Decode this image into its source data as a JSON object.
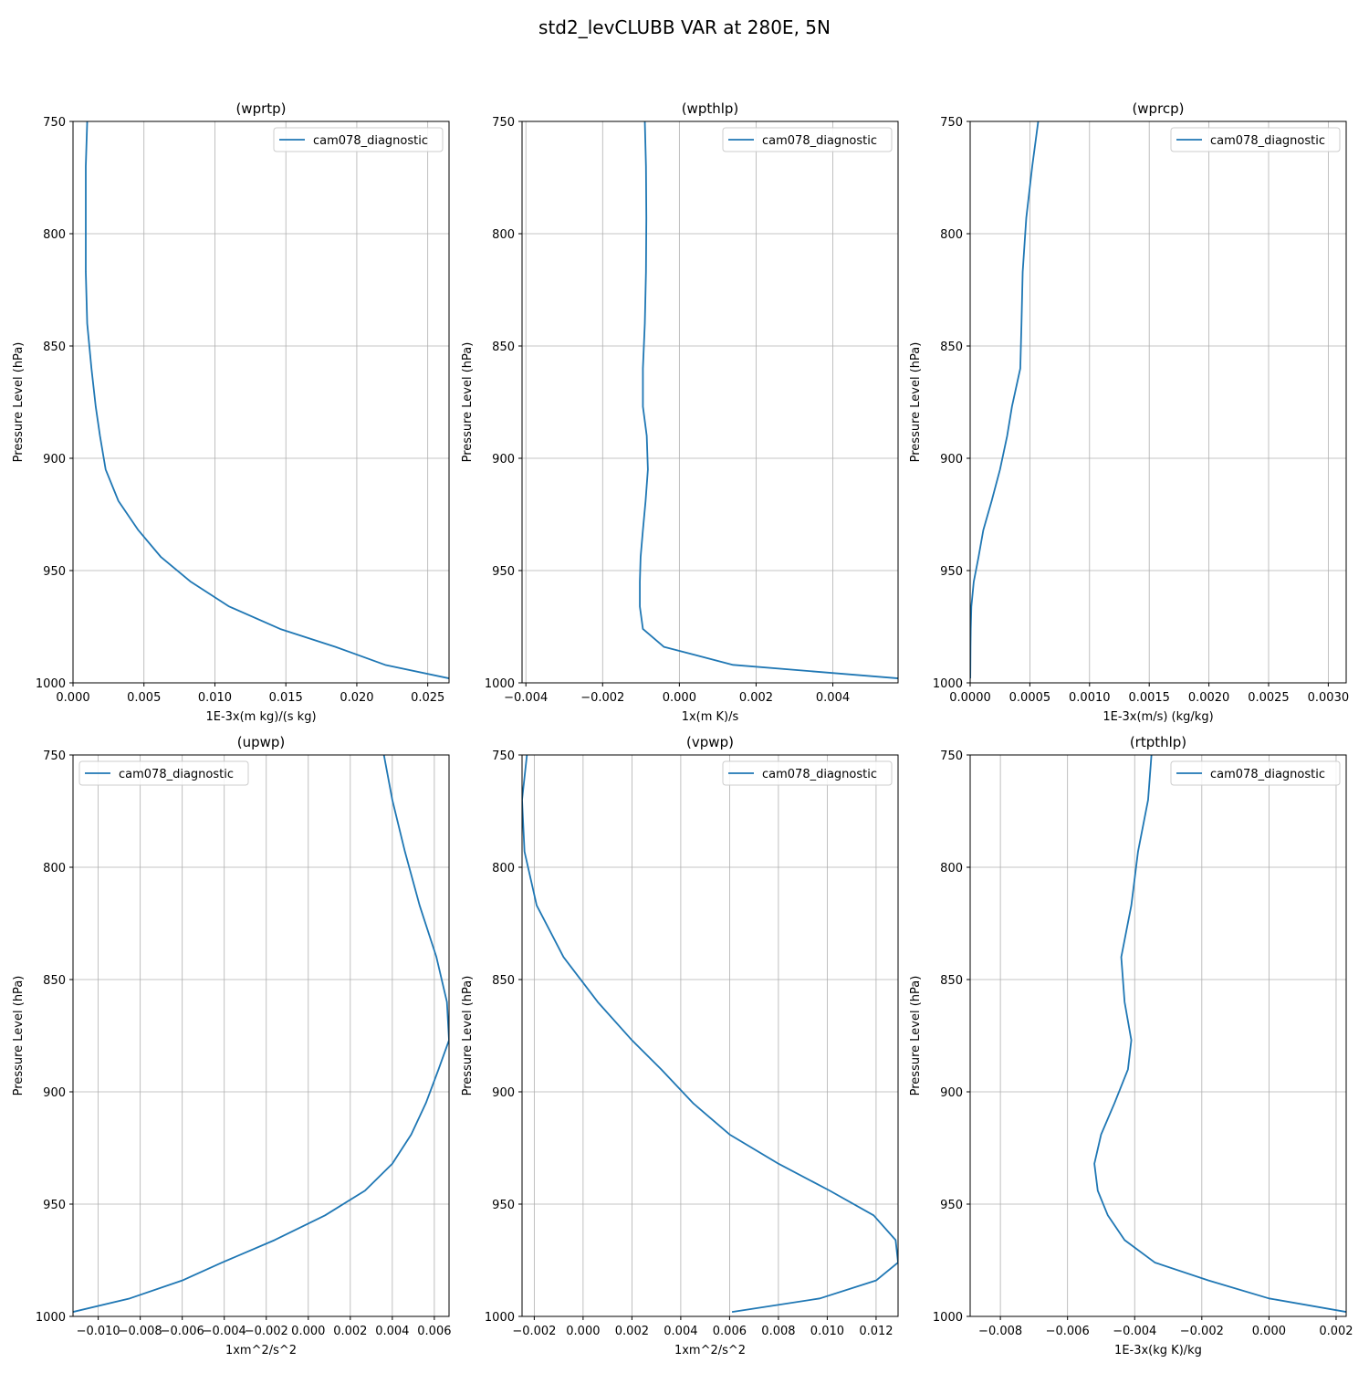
{
  "figure": {
    "title": "std2_levCLUBB VAR at 280E, 5N"
  },
  "colors": {
    "series": "#1f77b4",
    "grid": "#b0b0b0",
    "axes": "#000000",
    "legend_border": "#cccccc",
    "background": "#ffffff"
  },
  "chart_data": [
    {
      "type": "line",
      "title": "(wprtp)",
      "xlabel": "1E-3x(m kg)/(s kg)",
      "ylabel": "Pressure Level (hPa)",
      "xlim": [
        0,
        0.0265
      ],
      "ylim": [
        1000,
        750
      ],
      "y_inverted": true,
      "xticks": [
        0.0,
        0.005,
        0.01,
        0.015,
        0.02,
        0.025
      ],
      "xtick_labels": [
        "0.000",
        "0.005",
        "0.010",
        "0.015",
        "0.020",
        "0.025"
      ],
      "yticks": [
        750,
        800,
        850,
        900,
        950,
        1000
      ],
      "ytick_labels": [
        "750",
        "800",
        "850",
        "900",
        "950",
        "1000"
      ],
      "grid": true,
      "legend_loc": "upper right",
      "series": [
        {
          "name": "cam078_diagnostic",
          "x": [
            0.001,
            0.0009,
            0.0009,
            0.0009,
            0.001,
            0.0013,
            0.0016,
            0.0019,
            0.0023,
            0.0032,
            0.0046,
            0.0062,
            0.0083,
            0.011,
            0.0146,
            0.0185,
            0.022,
            0.0265
          ],
          "y": [
            750,
            770,
            793,
            817,
            840,
            860,
            877,
            890,
            905,
            919,
            932,
            944,
            955,
            966,
            976,
            984,
            992,
            998
          ]
        }
      ]
    },
    {
      "type": "line",
      "title": "(wpthlp)",
      "xlabel": "1x(m K)/s",
      "ylabel": "Pressure Level (hPa)",
      "xlim": [
        -0.0041,
        0.0057
      ],
      "ylim": [
        1000,
        750
      ],
      "y_inverted": true,
      "xticks": [
        -0.004,
        -0.002,
        0.0,
        0.002,
        0.004
      ],
      "xtick_labels": [
        "−0.004",
        "−0.002",
        "0.000",
        "0.002",
        "0.004"
      ],
      "yticks": [
        750,
        800,
        850,
        900,
        950,
        1000
      ],
      "ytick_labels": [
        "750",
        "800",
        "850",
        "900",
        "950",
        "1000"
      ],
      "grid": true,
      "legend_loc": "upper right",
      "series": [
        {
          "name": "cam078_diagnostic",
          "x": [
            -0.0009,
            -0.00087,
            -0.00086,
            -0.00087,
            -0.0009,
            -0.00095,
            -0.00095,
            -0.00085,
            -0.00082,
            -0.00088,
            -0.00095,
            -0.00101,
            -0.00103,
            -0.00103,
            -0.00095,
            -0.0004,
            0.0014,
            0.0057
          ],
          "y": [
            750,
            770,
            793,
            817,
            840,
            860,
            877,
            890,
            905,
            919,
            932,
            944,
            955,
            966,
            976,
            984,
            992,
            998
          ]
        }
      ]
    },
    {
      "type": "line",
      "title": "(wprcp)",
      "xlabel": "1E-3x(m/s) (kg/kg)",
      "ylabel": "Pressure Level (hPa)",
      "xlim": [
        0,
        0.00315
      ],
      "ylim": [
        1000,
        750
      ],
      "y_inverted": true,
      "xticks": [
        0.0,
        0.0005,
        0.001,
        0.0015,
        0.002,
        0.0025,
        0.003
      ],
      "xtick_labels": [
        "0.0000",
        "0.0005",
        "0.0010",
        "0.0015",
        "0.0020",
        "0.0025",
        "0.0030"
      ],
      "yticks": [
        750,
        800,
        850,
        900,
        950,
        1000
      ],
      "ytick_labels": [
        "750",
        "800",
        "850",
        "900",
        "950",
        "1000"
      ],
      "grid": true,
      "legend_loc": "upper right",
      "series": [
        {
          "name": "cam078_diagnostic",
          "x": [
            0.00057,
            0.00052,
            0.00047,
            0.00044,
            0.00043,
            0.00042,
            0.00035,
            0.00031,
            0.00025,
            0.00018,
            0.00011,
            7e-05,
            3e-05,
            1e-05,
            5e-06,
            3e-06,
            2e-06,
            1e-06
          ],
          "y": [
            750,
            770,
            793,
            817,
            840,
            860,
            877,
            890,
            905,
            919,
            932,
            944,
            955,
            966,
            976,
            984,
            992,
            998
          ]
        }
      ]
    },
    {
      "type": "line",
      "title": "(upwp)",
      "xlabel": "1xm^2/s^2",
      "ylabel": "Pressure Level (hPa)",
      "xlim": [
        -0.0112,
        0.0067
      ],
      "ylim": [
        1000,
        750
      ],
      "y_inverted": true,
      "xticks": [
        -0.01,
        -0.008,
        -0.006,
        -0.004,
        -0.002,
        0.0,
        0.002,
        0.004,
        0.006
      ],
      "xtick_labels": [
        "−0.010",
        "−0.008",
        "−0.006",
        "−0.004",
        "−0.002",
        "0.000",
        "0.002",
        "0.004",
        "0.006"
      ],
      "yticks": [
        750,
        800,
        850,
        900,
        950,
        1000
      ],
      "ytick_labels": [
        "750",
        "800",
        "850",
        "900",
        "950",
        "1000"
      ],
      "grid": true,
      "legend_loc": "upper left",
      "series": [
        {
          "name": "cam078_diagnostic",
          "x": [
            0.0036,
            0.004,
            0.0046,
            0.0053,
            0.0061,
            0.0066,
            0.0067,
            0.0062,
            0.0056,
            0.0049,
            0.004,
            0.0027,
            0.0008,
            -0.0016,
            -0.0041,
            -0.006,
            -0.0085,
            -0.0112
          ],
          "y": [
            750,
            770,
            793,
            817,
            840,
            860,
            877,
            890,
            905,
            919,
            932,
            944,
            955,
            966,
            976,
            984,
            992,
            998
          ]
        }
      ]
    },
    {
      "type": "line",
      "title": "(vpwp)",
      "xlabel": "1xm^2/s^2",
      "ylabel": "Pressure Level (hPa)",
      "xlim": [
        -0.0025,
        0.0129
      ],
      "ylim": [
        1000,
        750
      ],
      "y_inverted": true,
      "xticks": [
        -0.002,
        0.0,
        0.002,
        0.004,
        0.006,
        0.008,
        0.01,
        0.012
      ],
      "xtick_labels": [
        "−0.002",
        "0.000",
        "0.002",
        "0.004",
        "0.006",
        "0.008",
        "0.010",
        "0.012"
      ],
      "yticks": [
        750,
        800,
        850,
        900,
        950,
        1000
      ],
      "ytick_labels": [
        "750",
        "800",
        "850",
        "900",
        "950",
        "1000"
      ],
      "grid": true,
      "legend_loc": "upper right",
      "series": [
        {
          "name": "cam078_diagnostic",
          "x": [
            -0.0023,
            -0.0025,
            -0.0024,
            -0.0019,
            -0.0008,
            0.0006,
            0.002,
            0.0032,
            0.0045,
            0.006,
            0.008,
            0.0101,
            0.0119,
            0.0128,
            0.0129,
            0.012,
            0.0097,
            0.0061
          ],
          "y": [
            750,
            770,
            793,
            817,
            840,
            860,
            877,
            890,
            905,
            919,
            932,
            944,
            955,
            966,
            976,
            984,
            992,
            998
          ]
        }
      ]
    },
    {
      "type": "line",
      "title": "(rtpthlp)",
      "xlabel": "1E-3x(kg K)/kg",
      "ylabel": "Pressure Level (hPa)",
      "xlim": [
        -0.0089,
        0.0023
      ],
      "ylim": [
        1000,
        750
      ],
      "y_inverted": true,
      "xticks": [
        -0.008,
        -0.006,
        -0.004,
        -0.002,
        0.0,
        0.002
      ],
      "xtick_labels": [
        "−0.008",
        "−0.006",
        "−0.004",
        "−0.002",
        "0.000",
        "0.002"
      ],
      "yticks": [
        750,
        800,
        850,
        900,
        950,
        1000
      ],
      "ytick_labels": [
        "750",
        "800",
        "850",
        "900",
        "950",
        "1000"
      ],
      "grid": true,
      "legend_loc": "upper right",
      "series": [
        {
          "name": "cam078_diagnostic",
          "x": [
            -0.0035,
            -0.0036,
            -0.0039,
            -0.0041,
            -0.0044,
            -0.0043,
            -0.0041,
            -0.0042,
            -0.0046,
            -0.005,
            -0.0052,
            -0.0051,
            -0.0048,
            -0.0043,
            -0.0034,
            -0.0018,
            0.0,
            0.0023
          ],
          "y": [
            750,
            770,
            793,
            817,
            840,
            860,
            877,
            890,
            905,
            919,
            932,
            944,
            955,
            966,
            976,
            984,
            992,
            998
          ]
        }
      ]
    }
  ]
}
